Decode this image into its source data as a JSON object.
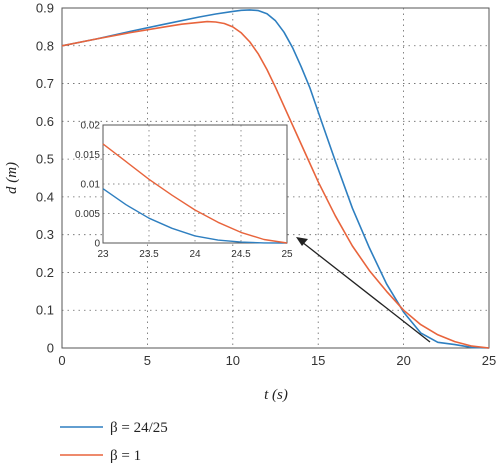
{
  "chart_data": {
    "type": "line",
    "title": "",
    "xlabel": "t (s)",
    "ylabel": "d (m)",
    "xlim": [
      0,
      25
    ],
    "ylim": [
      0,
      0.9
    ],
    "x_ticks": [
      "0",
      "5",
      "10",
      "15",
      "20",
      "25"
    ],
    "y_ticks": [
      "0",
      "0.1",
      "0.2",
      "0.3",
      "0.4",
      "0.5",
      "0.6",
      "0.7",
      "0.8",
      "0.9"
    ],
    "grid": "dotted",
    "legend_position": "bottom-left",
    "series": [
      {
        "name": "β = 24/25",
        "color": "#2e7fc0",
        "x": [
          0,
          2,
          4,
          6,
          8,
          9,
          10,
          10.5,
          11,
          11.5,
          12,
          12.5,
          13,
          13.5,
          14,
          14.5,
          15,
          15.5,
          16,
          17,
          18,
          19,
          20,
          21,
          22,
          23,
          24,
          25
        ],
        "y": [
          0.8,
          0.818,
          0.838,
          0.857,
          0.876,
          0.884,
          0.891,
          0.894,
          0.895,
          0.893,
          0.885,
          0.866,
          0.836,
          0.795,
          0.745,
          0.69,
          0.625,
          0.56,
          0.495,
          0.37,
          0.265,
          0.17,
          0.095,
          0.04,
          0.015,
          0.009,
          0.0015,
          0.0
        ]
      },
      {
        "name": "β = 1",
        "color": "#e8643c",
        "x": [
          0,
          2,
          4,
          6,
          7,
          8,
          8.5,
          9,
          9.5,
          10,
          10.5,
          11,
          11.5,
          12,
          12.5,
          13,
          14,
          15,
          16,
          17,
          18,
          19,
          20,
          21,
          22,
          23,
          24,
          25
        ],
        "y": [
          0.8,
          0.818,
          0.835,
          0.85,
          0.857,
          0.862,
          0.864,
          0.863,
          0.859,
          0.85,
          0.834,
          0.81,
          0.778,
          0.737,
          0.69,
          0.64,
          0.54,
          0.44,
          0.35,
          0.27,
          0.205,
          0.15,
          0.1,
          0.062,
          0.035,
          0.017,
          0.005,
          0.0
        ]
      }
    ],
    "inset": {
      "xlim": [
        23,
        25
      ],
      "ylim": [
        0,
        0.02
      ],
      "x_ticks": [
        "23",
        "23.5",
        "24",
        "24.5",
        "25"
      ],
      "y_ticks": [
        "0",
        "0.005",
        "0.01",
        "0.015",
        "0.02"
      ],
      "series": [
        {
          "name": "β = 24/25",
          "x": [
            23,
            23.25,
            23.5,
            23.75,
            24,
            24.25,
            24.5,
            24.75,
            25
          ],
          "y": [
            0.0092,
            0.0065,
            0.0042,
            0.0025,
            0.0012,
            0.0005,
            0.00015,
            2e-05,
            0.0
          ]
        },
        {
          "name": "β = 1",
          "x": [
            23,
            23.25,
            23.5,
            23.75,
            24,
            24.25,
            24.5,
            24.75,
            25
          ],
          "y": [
            0.0168,
            0.0138,
            0.0108,
            0.0081,
            0.0056,
            0.0035,
            0.0018,
            0.0006,
            0.0
          ]
        }
      ]
    }
  },
  "legend": {
    "items": [
      {
        "label": "β = 24/25",
        "color": "#2e7fc0"
      },
      {
        "label": "β = 1",
        "color": "#e8643c"
      }
    ]
  }
}
